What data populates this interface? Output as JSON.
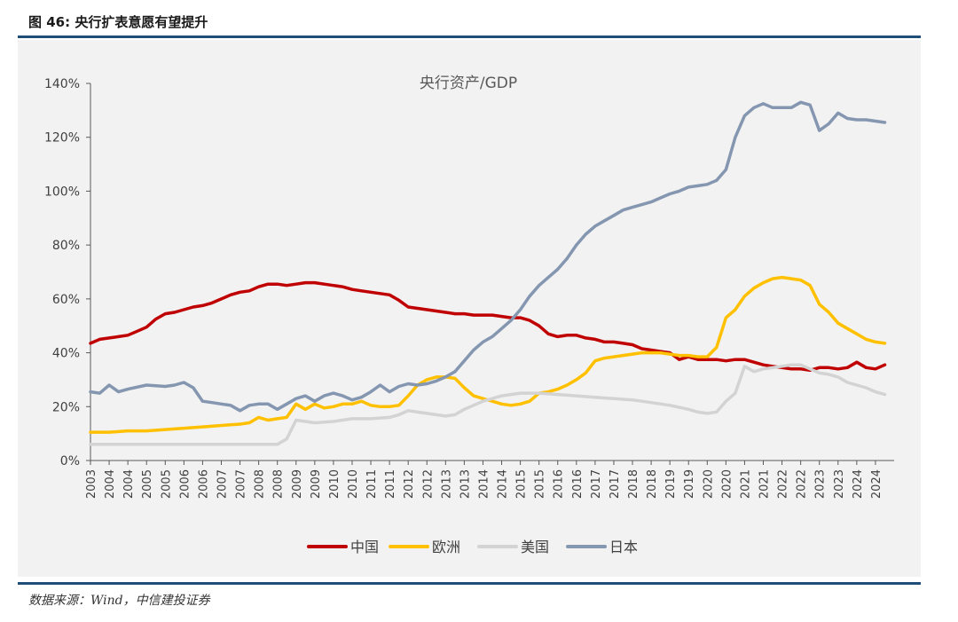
{
  "figure": {
    "title": "图 46:  央行扩表意愿有望提升",
    "source": "数据来源：Wind，中信建投证券"
  },
  "chart_data": {
    "type": "line",
    "title": "央行资产/GDP",
    "xlabel": "",
    "ylabel": "",
    "ylim": [
      0,
      140
    ],
    "xlim": [
      2003,
      2024.5
    ],
    "y_unit": "%",
    "y_ticks": [
      0,
      20,
      40,
      60,
      80,
      100,
      120,
      140
    ],
    "y_tick_labels": [
      "0%",
      "20%",
      "40%",
      "60%",
      "80%",
      "100%",
      "120%",
      "140%"
    ],
    "x_tick_labels": [
      "2003",
      "2004",
      "2004",
      "2005",
      "2005",
      "2006",
      "2006",
      "2007",
      "2007",
      "2008",
      "2008",
      "2009",
      "2009",
      "2010",
      "2010",
      "2011",
      "2011",
      "2012",
      "2012",
      "2013",
      "2013",
      "2014",
      "2014",
      "2015",
      "2015",
      "2016",
      "2016",
      "2017",
      "2017",
      "2018",
      "2018",
      "2019",
      "2019",
      "2020",
      "2020",
      "2021",
      "2021",
      "2022",
      "2022",
      "2023",
      "2023",
      "2024",
      "2024"
    ],
    "grid": false,
    "legend_position": "bottom",
    "series": [
      {
        "name": "中国",
        "color": "#c00000",
        "x": [
          2003,
          2003.25,
          2003.5,
          2003.75,
          2004,
          2004.25,
          2004.5,
          2004.75,
          2005,
          2005.25,
          2005.5,
          2005.75,
          2006,
          2006.25,
          2006.5,
          2006.75,
          2007,
          2007.25,
          2007.5,
          2007.75,
          2008,
          2008.25,
          2008.5,
          2008.75,
          2009,
          2009.25,
          2009.5,
          2009.75,
          2010,
          2010.25,
          2010.5,
          2010.75,
          2011,
          2011.25,
          2011.5,
          2011.75,
          2012,
          2012.25,
          2012.5,
          2012.75,
          2013,
          2013.25,
          2013.5,
          2013.75,
          2014,
          2014.25,
          2014.5,
          2014.75,
          2015,
          2015.25,
          2015.5,
          2015.75,
          2016,
          2016.25,
          2016.5,
          2016.75,
          2017,
          2017.25,
          2017.5,
          2017.75,
          2018,
          2018.25,
          2018.5,
          2018.75,
          2019,
          2019.25,
          2019.5,
          2019.75,
          2020,
          2020.25,
          2020.5,
          2020.75,
          2021,
          2021.25,
          2021.5,
          2021.75,
          2022,
          2022.25,
          2022.5,
          2022.75,
          2023,
          2023.25,
          2023.5,
          2023.75,
          2024,
          2024.25
        ],
        "values": [
          43.5,
          45,
          45.5,
          46,
          46.5,
          48,
          49.5,
          52.5,
          54.5,
          55,
          56,
          57,
          57.5,
          58.5,
          60,
          61.5,
          62.5,
          63,
          64.5,
          65.5,
          65.5,
          65,
          65.5,
          66,
          66,
          65.5,
          65,
          64.5,
          63.5,
          63,
          62.5,
          62,
          61.5,
          59.5,
          57,
          56.5,
          56,
          55.5,
          55,
          54.5,
          54.5,
          54,
          54,
          54,
          53.5,
          53,
          53,
          52,
          50,
          47,
          46,
          46.5,
          46.5,
          45.5,
          45,
          44,
          44,
          43.5,
          43,
          41.5,
          41,
          40.5,
          40,
          37.5,
          38.5,
          37.5,
          37.5,
          37.5,
          37,
          37.5,
          37.5,
          36.5,
          35.5,
          35,
          34.5,
          34,
          34,
          33.5,
          34.5,
          34.5,
          34,
          34.5,
          36.5,
          34.5,
          34,
          35.5
        ]
      },
      {
        "name": "欧洲",
        "color": "#ffc000",
        "x": [
          2003,
          2003.5,
          2004,
          2004.5,
          2005,
          2005.5,
          2006,
          2006.5,
          2007,
          2007.25,
          2007.5,
          2007.75,
          2008,
          2008.25,
          2008.5,
          2008.75,
          2009,
          2009.25,
          2009.5,
          2009.75,
          2010,
          2010.25,
          2010.5,
          2010.75,
          2011,
          2011.25,
          2011.5,
          2011.75,
          2012,
          2012.25,
          2012.5,
          2012.75,
          2013,
          2013.25,
          2013.5,
          2013.75,
          2014,
          2014.25,
          2014.5,
          2014.75,
          2015,
          2015.25,
          2015.5,
          2015.75,
          2016,
          2016.25,
          2016.5,
          2016.75,
          2017,
          2017.25,
          2017.5,
          2017.75,
          2018,
          2018.25,
          2018.5,
          2018.75,
          2019,
          2019.25,
          2019.5,
          2019.75,
          2020,
          2020.25,
          2020.5,
          2020.75,
          2021,
          2021.25,
          2021.5,
          2021.75,
          2022,
          2022.25,
          2022.5,
          2022.75,
          2023,
          2023.25,
          2023.5,
          2023.75,
          2024,
          2024.25
        ],
        "values": [
          10.5,
          10.5,
          11,
          11,
          11.5,
          12,
          12.5,
          13,
          13.5,
          14,
          16,
          15,
          15.5,
          16,
          21,
          19,
          21,
          19.5,
          20,
          21,
          21,
          22,
          20.5,
          20,
          20,
          20.5,
          24,
          28,
          30,
          31,
          31,
          30.5,
          27,
          24,
          23,
          22,
          21,
          20.5,
          21,
          22,
          25,
          25.5,
          26.5,
          28,
          30,
          32.5,
          37,
          38,
          38.5,
          39,
          39.5,
          40,
          40,
          40,
          39.5,
          39,
          39,
          38.5,
          38.5,
          42,
          53,
          56,
          61,
          64,
          66,
          67.5,
          68,
          67.5,
          67,
          65,
          58,
          55,
          51,
          49,
          47,
          45,
          44,
          43.5
        ]
      },
      {
        "name": "美国",
        "color": "#d3d3d3",
        "x": [
          2003,
          2003.5,
          2004,
          2004.5,
          2005,
          2005.5,
          2006,
          2006.5,
          2007,
          2007.5,
          2008,
          2008.25,
          2008.5,
          2008.75,
          2009,
          2009.5,
          2010,
          2010.5,
          2011,
          2011.25,
          2011.5,
          2011.75,
          2012,
          2012.25,
          2012.5,
          2012.75,
          2013,
          2013.25,
          2013.5,
          2013.75,
          2014,
          2014.25,
          2014.5,
          2015,
          2015.5,
          2016,
          2016.5,
          2017,
          2017.5,
          2018,
          2018.5,
          2019,
          2019.25,
          2019.5,
          2019.75,
          2020,
          2020.25,
          2020.5,
          2020.75,
          2021,
          2021.25,
          2021.5,
          2021.75,
          2022,
          2022.25,
          2022.5,
          2022.75,
          2023,
          2023.25,
          2023.5,
          2023.75,
          2024,
          2024.25
        ],
        "values": [
          6,
          6,
          6,
          6,
          6,
          6,
          6,
          6,
          6,
          6,
          6,
          8,
          15,
          14.5,
          14,
          14.5,
          15.5,
          15.5,
          16,
          17,
          18.5,
          18,
          17.5,
          17,
          16.5,
          17,
          19,
          20.5,
          22,
          23,
          24,
          24.5,
          25,
          25,
          24.5,
          24,
          23.5,
          23,
          22.5,
          21.5,
          20.5,
          19,
          18,
          17.5,
          18,
          22,
          25,
          35,
          33,
          34,
          34.5,
          35,
          35.5,
          35.5,
          34,
          32.5,
          32,
          31,
          29,
          28,
          27,
          25.5,
          24.5
        ]
      },
      {
        "name": "日本",
        "color": "#8496b0",
        "x": [
          2003,
          2003.25,
          2003.5,
          2003.75,
          2004,
          2004.5,
          2005,
          2005.25,
          2005.5,
          2005.75,
          2006,
          2006.25,
          2006.5,
          2006.75,
          2007,
          2007.25,
          2007.5,
          2007.75,
          2008,
          2008.25,
          2008.5,
          2008.75,
          2009,
          2009.25,
          2009.5,
          2009.75,
          2010,
          2010.25,
          2010.5,
          2010.75,
          2011,
          2011.25,
          2011.5,
          2011.75,
          2012,
          2012.25,
          2012.5,
          2012.75,
          2013,
          2013.25,
          2013.5,
          2013.75,
          2014,
          2014.25,
          2014.5,
          2014.75,
          2015,
          2015.25,
          2015.5,
          2015.75,
          2016,
          2016.25,
          2016.5,
          2016.75,
          2017,
          2017.25,
          2017.5,
          2017.75,
          2018,
          2018.25,
          2018.5,
          2018.75,
          2019,
          2019.25,
          2019.5,
          2019.75,
          2020,
          2020.25,
          2020.5,
          2020.75,
          2021,
          2021.25,
          2021.5,
          2021.75,
          2022,
          2022.25,
          2022.5,
          2022.75,
          2023,
          2023.25,
          2023.5,
          2023.75,
          2024,
          2024.25
        ],
        "values": [
          25.5,
          25,
          28,
          25.5,
          26.5,
          28,
          27.5,
          28,
          29,
          27,
          22,
          21.5,
          21,
          20.5,
          18.5,
          20.5,
          21,
          21,
          19,
          21,
          23,
          24,
          22,
          24,
          25,
          24,
          22.5,
          23.5,
          25.5,
          28,
          25.5,
          27.5,
          28.5,
          28,
          28.5,
          29.5,
          31,
          33,
          37,
          41,
          44,
          46,
          49,
          52,
          56,
          61,
          65,
          68,
          71,
          75,
          80,
          84,
          87,
          89,
          91,
          93,
          94,
          95,
          96,
          97.5,
          99,
          100,
          101.5,
          102,
          102.5,
          104,
          108,
          120,
          128,
          131,
          132.5,
          131,
          131,
          131,
          133,
          132,
          122.5,
          125,
          129,
          127,
          126.5,
          126.5,
          126,
          125.5
        ]
      }
    ]
  }
}
